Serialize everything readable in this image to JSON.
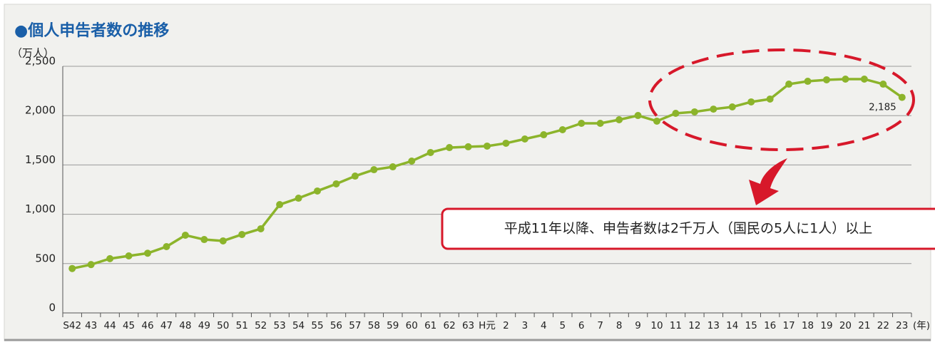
{
  "chart_data": {
    "type": "line",
    "title": "●個人申告者数の推移",
    "y_unit": "（万人）",
    "x_unit": "(年)",
    "annotation": "平成11年以降、申告者数は2千万人（国民の5人に1人）以上",
    "categories": [
      "S42",
      "43",
      "44",
      "45",
      "46",
      "47",
      "48",
      "49",
      "50",
      "51",
      "52",
      "53",
      "54",
      "55",
      "56",
      "57",
      "58",
      "59",
      "60",
      "61",
      "62",
      "63",
      "H元",
      "2",
      "3",
      "4",
      "5",
      "6",
      "7",
      "8",
      "9",
      "10",
      "11",
      "12",
      "13",
      "14",
      "15",
      "16",
      "17",
      "18",
      "19",
      "20",
      "21",
      "22",
      "23"
    ],
    "values": [
      450,
      490,
      550,
      578,
      605,
      672,
      788,
      744,
      730,
      795,
      853,
      1098,
      1163,
      1236,
      1308,
      1387,
      1452,
      1481,
      1539,
      1626,
      1676,
      1684,
      1691,
      1720,
      1763,
      1806,
      1857,
      1922,
      1922,
      1958,
      2001,
      1944,
      2023,
      2038,
      2066,
      2088,
      2139,
      2168,
      2319,
      2348,
      2363,
      2370,
      2370,
      2319,
      2185
    ],
    "value_labels": [
      null,
      null,
      null,
      null,
      null,
      null,
      null,
      null,
      null,
      null,
      null,
      null,
      null,
      null,
      null,
      null,
      null,
      null,
      null,
      null,
      null,
      null,
      null,
      null,
      null,
      null,
      null,
      null,
      null,
      null,
      null,
      null,
      null,
      null,
      null,
      null,
      null,
      null,
      null,
      null,
      null,
      null,
      null,
      null,
      "2,185"
    ],
    "color": "#8cb42b",
    "ylim": [
      0,
      2500
    ],
    "yticks": [
      0,
      {
        "value": 500,
        "label": "500"
      },
      {
        "value": 1000,
        "label": "1,000"
      },
      {
        "value": 1500,
        "label": "1,500"
      },
      {
        "value": 2000,
        "label": "2,000"
      },
      {
        "value": 2500,
        "label": "2,500"
      }
    ],
    "grid": true
  }
}
